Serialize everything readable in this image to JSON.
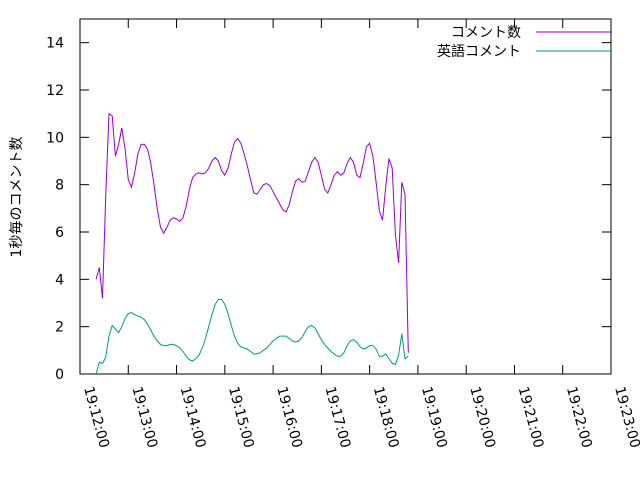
{
  "chart_data": {
    "type": "line",
    "title": "",
    "xlabel": "",
    "ylabel": "1秒毎のコメント数",
    "ylim": [
      0,
      15
    ],
    "y_ticks": [
      0,
      2,
      4,
      6,
      8,
      10,
      12,
      14
    ],
    "x_ticks": [
      "19:12:00",
      "19:13:00",
      "19:14:00",
      "19:15:00",
      "19:16:00",
      "19:17:00",
      "19:18:00",
      "19:19:00",
      "19:20:00",
      "19:21:00",
      "19:22:00",
      "19:23:00"
    ],
    "x_unit": "seconds since 19:12:00",
    "xlim": [
      0,
      660
    ],
    "grid": false,
    "legend_position": "top-right",
    "series": [
      {
        "name": "コメント数",
        "color": "#9400d3",
        "points": [
          [
            20,
            4.0
          ],
          [
            24,
            4.5
          ],
          [
            28,
            3.2
          ],
          [
            32,
            7.5
          ],
          [
            36,
            11.0
          ],
          [
            40,
            10.9
          ],
          [
            44,
            9.2
          ],
          [
            48,
            9.7
          ],
          [
            52,
            10.4
          ],
          [
            56,
            9.5
          ],
          [
            60,
            8.2
          ],
          [
            64,
            7.9
          ],
          [
            68,
            8.5
          ],
          [
            72,
            9.3
          ],
          [
            76,
            9.7
          ],
          [
            80,
            9.7
          ],
          [
            84,
            9.5
          ],
          [
            88,
            8.9
          ],
          [
            92,
            8.0
          ],
          [
            96,
            7.0
          ],
          [
            100,
            6.2
          ],
          [
            104,
            5.95
          ],
          [
            108,
            6.2
          ],
          [
            112,
            6.5
          ],
          [
            116,
            6.6
          ],
          [
            120,
            6.55
          ],
          [
            124,
            6.45
          ],
          [
            128,
            6.6
          ],
          [
            132,
            7.1
          ],
          [
            136,
            7.8
          ],
          [
            140,
            8.3
          ],
          [
            144,
            8.45
          ],
          [
            148,
            8.5
          ],
          [
            152,
            8.45
          ],
          [
            156,
            8.5
          ],
          [
            160,
            8.7
          ],
          [
            164,
            9.0
          ],
          [
            168,
            9.15
          ],
          [
            172,
            9.0
          ],
          [
            176,
            8.6
          ],
          [
            180,
            8.4
          ],
          [
            184,
            8.7
          ],
          [
            188,
            9.3
          ],
          [
            192,
            9.8
          ],
          [
            196,
            9.95
          ],
          [
            200,
            9.75
          ],
          [
            204,
            9.3
          ],
          [
            208,
            8.8
          ],
          [
            212,
            8.2
          ],
          [
            216,
            7.65
          ],
          [
            220,
            7.6
          ],
          [
            224,
            7.8
          ],
          [
            228,
            8.0
          ],
          [
            232,
            8.05
          ],
          [
            236,
            7.95
          ],
          [
            240,
            7.7
          ],
          [
            244,
            7.45
          ],
          [
            248,
            7.2
          ],
          [
            252,
            6.95
          ],
          [
            256,
            6.85
          ],
          [
            260,
            7.15
          ],
          [
            264,
            7.7
          ],
          [
            268,
            8.15
          ],
          [
            272,
            8.25
          ],
          [
            276,
            8.1
          ],
          [
            280,
            8.15
          ],
          [
            284,
            8.55
          ],
          [
            288,
            8.95
          ],
          [
            292,
            9.15
          ],
          [
            296,
            8.95
          ],
          [
            300,
            8.4
          ],
          [
            304,
            7.8
          ],
          [
            308,
            7.65
          ],
          [
            312,
            8.0
          ],
          [
            316,
            8.4
          ],
          [
            320,
            8.55
          ],
          [
            324,
            8.4
          ],
          [
            328,
            8.5
          ],
          [
            332,
            8.9
          ],
          [
            336,
            9.15
          ],
          [
            340,
            8.95
          ],
          [
            344,
            8.4
          ],
          [
            348,
            8.3
          ],
          [
            352,
            8.9
          ],
          [
            356,
            9.6
          ],
          [
            360,
            9.75
          ],
          [
            364,
            9.2
          ],
          [
            368,
            8.1
          ],
          [
            372,
            6.9
          ],
          [
            376,
            6.5
          ],
          [
            380,
            7.9
          ],
          [
            384,
            9.1
          ],
          [
            388,
            8.7
          ],
          [
            392,
            5.9
          ],
          [
            396,
            4.7
          ],
          [
            400,
            8.1
          ],
          [
            404,
            7.6
          ],
          [
            408,
            0.9
          ]
        ]
      },
      {
        "name": "英語コメント",
        "color": "#009e73",
        "points": [
          [
            20,
            0.0
          ],
          [
            24,
            0.5
          ],
          [
            28,
            0.45
          ],
          [
            32,
            0.7
          ],
          [
            36,
            1.6
          ],
          [
            40,
            2.05
          ],
          [
            44,
            1.9
          ],
          [
            48,
            1.75
          ],
          [
            52,
            2.0
          ],
          [
            56,
            2.35
          ],
          [
            60,
            2.55
          ],
          [
            64,
            2.6
          ],
          [
            68,
            2.5
          ],
          [
            72,
            2.45
          ],
          [
            76,
            2.4
          ],
          [
            80,
            2.3
          ],
          [
            84,
            2.1
          ],
          [
            88,
            1.85
          ],
          [
            92,
            1.6
          ],
          [
            96,
            1.4
          ],
          [
            100,
            1.25
          ],
          [
            104,
            1.2
          ],
          [
            108,
            1.2
          ],
          [
            112,
            1.25
          ],
          [
            116,
            1.25
          ],
          [
            120,
            1.2
          ],
          [
            124,
            1.1
          ],
          [
            128,
            0.95
          ],
          [
            132,
            0.75
          ],
          [
            136,
            0.6
          ],
          [
            140,
            0.55
          ],
          [
            144,
            0.65
          ],
          [
            148,
            0.8
          ],
          [
            152,
            1.1
          ],
          [
            156,
            1.5
          ],
          [
            160,
            2.0
          ],
          [
            164,
            2.5
          ],
          [
            168,
            2.95
          ],
          [
            172,
            3.15
          ],
          [
            176,
            3.15
          ],
          [
            180,
            2.95
          ],
          [
            184,
            2.55
          ],
          [
            188,
            2.05
          ],
          [
            192,
            1.6
          ],
          [
            196,
            1.3
          ],
          [
            200,
            1.15
          ],
          [
            204,
            1.1
          ],
          [
            208,
            1.05
          ],
          [
            212,
            0.95
          ],
          [
            216,
            0.85
          ],
          [
            220,
            0.85
          ],
          [
            224,
            0.9
          ],
          [
            228,
            1.0
          ],
          [
            232,
            1.1
          ],
          [
            236,
            1.25
          ],
          [
            240,
            1.4
          ],
          [
            244,
            1.5
          ],
          [
            248,
            1.6
          ],
          [
            252,
            1.6
          ],
          [
            256,
            1.6
          ],
          [
            260,
            1.5
          ],
          [
            264,
            1.4
          ],
          [
            268,
            1.35
          ],
          [
            272,
            1.4
          ],
          [
            276,
            1.55
          ],
          [
            280,
            1.8
          ],
          [
            284,
            2.0
          ],
          [
            288,
            2.05
          ],
          [
            292,
            1.95
          ],
          [
            296,
            1.7
          ],
          [
            300,
            1.45
          ],
          [
            304,
            1.25
          ],
          [
            308,
            1.1
          ],
          [
            312,
            0.95
          ],
          [
            316,
            0.85
          ],
          [
            320,
            0.75
          ],
          [
            324,
            0.75
          ],
          [
            328,
            0.9
          ],
          [
            332,
            1.2
          ],
          [
            336,
            1.4
          ],
          [
            340,
            1.45
          ],
          [
            344,
            1.35
          ],
          [
            348,
            1.15
          ],
          [
            352,
            1.05
          ],
          [
            356,
            1.1
          ],
          [
            360,
            1.2
          ],
          [
            364,
            1.2
          ],
          [
            368,
            1.05
          ],
          [
            372,
            0.75
          ],
          [
            376,
            0.75
          ],
          [
            380,
            0.85
          ],
          [
            384,
            0.65
          ],
          [
            388,
            0.45
          ],
          [
            392,
            0.4
          ],
          [
            396,
            0.8
          ],
          [
            400,
            1.7
          ],
          [
            404,
            0.65
          ],
          [
            408,
            0.75
          ]
        ]
      }
    ]
  }
}
